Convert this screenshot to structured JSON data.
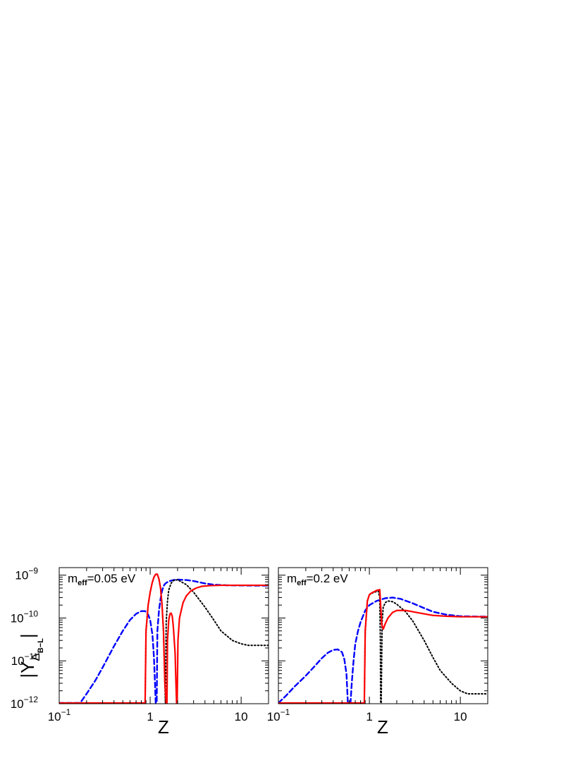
{
  "chart_data": [
    {
      "type": "line",
      "panel": "left",
      "annotation": {
        "main": "m",
        "sub": "eff",
        "rest": "=0.05 eV"
      },
      "xlabel": "Z",
      "ylabel": {
        "main": "|Y",
        "sub": "Δ",
        "subsub": "B−L",
        "end": "|"
      },
      "xscale": "log",
      "yscale": "log",
      "xlim": [
        0.1,
        20
      ],
      "ylim": [
        1e-12,
        1.5e-09
      ],
      "xticks": [
        {
          "value": 0.1,
          "base": "10",
          "exp": "−1"
        },
        {
          "value": 1,
          "label": "1"
        },
        {
          "value": 10,
          "label": "10"
        }
      ],
      "yticks": [
        {
          "value": 1e-12,
          "base": "10",
          "exp": "−12"
        },
        {
          "value": 1e-11,
          "base": "10",
          "exp": "−11"
        },
        {
          "value": 1e-10,
          "base": "10",
          "exp": "−10"
        },
        {
          "value": 1e-09,
          "base": "10",
          "exp": "−9"
        }
      ],
      "series": [
        {
          "style": "dashed",
          "color": "#0000ff",
          "x": [
            0.1,
            0.17,
            0.2,
            0.25,
            0.3,
            0.4,
            0.5,
            0.6,
            0.7,
            0.8,
            0.88,
            0.95,
            1.0,
            1.06,
            1.1,
            1.13,
            1.15,
            1.18,
            1.2,
            1.25,
            1.3,
            1.35,
            1.4,
            1.45,
            1.5,
            1.6,
            1.8,
            2.0,
            2.5,
            3.0,
            3.5,
            4,
            5,
            7,
            10,
            15,
            20
          ],
          "y": [
            1e-12,
            1e-12,
            1.7e-12,
            3.5e-12,
            7e-12,
            2.2e-11,
            5e-11,
            9e-11,
            1.25e-10,
            1.45e-10,
            1.45e-10,
            1.2e-10,
            9e-11,
            4e-11,
            1.2e-11,
            3e-12,
            1e-12,
            1e-12,
            5e-11,
            1.5e-10,
            2.8e-10,
            4.3e-10,
            5.5e-10,
            6.2e-10,
            6.6e-10,
            7.2e-10,
            7.7e-10,
            7.9e-10,
            7.7e-10,
            7.3e-10,
            6.8e-10,
            6.4e-10,
            6e-10,
            5.8e-10,
            5.75e-10,
            5.7e-10,
            5.7e-10
          ]
        },
        {
          "style": "dotted",
          "color": "#000000",
          "x": [
            0.1,
            0.85,
            0.88,
            0.9,
            0.95,
            1.0,
            1.05,
            1.1,
            1.15,
            1.2,
            1.25,
            1.3,
            1.35,
            1.4,
            1.45,
            1.47,
            1.5,
            1.55,
            1.6,
            1.7,
            1.8,
            2.0,
            2.5,
            3.0,
            4.0,
            5.0,
            6.0,
            8.0,
            10,
            12,
            15,
            20
          ],
          "y": [
            1e-12,
            1e-12,
            1e-12,
            5e-11,
            2e-10,
            4e-10,
            6.5e-10,
            9e-10,
            1.05e-09,
            1.05e-09,
            8e-10,
            5e-10,
            2e-10,
            5e-11,
            3e-12,
            1e-12,
            8e-11,
            2.5e-10,
            4.5e-10,
            6.5e-10,
            7.5e-10,
            7.8e-10,
            6e-10,
            4e-10,
            1.8e-10,
            9e-11,
            5e-11,
            3e-11,
            2.5e-11,
            2.3e-11,
            2.3e-11,
            2.3e-11
          ]
        },
        {
          "style": "solid",
          "color": "#ff0000",
          "x": [
            0.1,
            0.88,
            0.9,
            0.95,
            1.0,
            1.05,
            1.1,
            1.15,
            1.2,
            1.25,
            1.3,
            1.35,
            1.4,
            1.45,
            1.5,
            1.53,
            1.55,
            1.6,
            1.65,
            1.7,
            1.75,
            1.8,
            1.88,
            1.92,
            1.95,
            1.98,
            2.02,
            2.1,
            2.3,
            2.5,
            2.8,
            3.2,
            3.7,
            4.5,
            6,
            8,
            10,
            15,
            20
          ],
          "y": [
            1e-12,
            1e-12,
            5e-11,
            2e-10,
            4e-10,
            6.5e-10,
            9e-10,
            1.05e-09,
            1.05e-09,
            8e-10,
            5e-10,
            2e-10,
            5e-11,
            3e-12,
            1e-12,
            1e-12,
            3e-11,
            9e-11,
            1.25e-10,
            1.3e-10,
            1.1e-10,
            6e-11,
            1.5e-11,
            3e-12,
            1e-12,
            1e-12,
            3e-11,
            1e-10,
            2.3e-10,
            3.3e-10,
            4.3e-10,
            5e-10,
            5.5e-10,
            5.7e-10,
            5.8e-10,
            5.8e-10,
            5.8e-10,
            5.8e-10,
            5.8e-10
          ]
        }
      ]
    },
    {
      "type": "line",
      "panel": "right",
      "annotation": {
        "main": "m",
        "sub": "eff",
        "rest": "=0.2 eV"
      },
      "xlabel": "Z",
      "xscale": "log",
      "yscale": "log",
      "xlim": [
        0.1,
        20
      ],
      "ylim": [
        1e-12,
        1.5e-09
      ],
      "xticks": [
        {
          "value": 0.1,
          "base": "10",
          "exp": "−1"
        },
        {
          "value": 1,
          "label": "1"
        },
        {
          "value": 10,
          "label": "10"
        }
      ],
      "series": [
        {
          "style": "dashed",
          "color": "#0000ff",
          "x": [
            0.1,
            0.12,
            0.15,
            0.2,
            0.25,
            0.3,
            0.35,
            0.4,
            0.45,
            0.5,
            0.53,
            0.56,
            0.58,
            0.6,
            0.62,
            0.64,
            0.67,
            0.7,
            0.75,
            0.8,
            0.9,
            1.0,
            1.2,
            1.5,
            1.8,
            2.2,
            3.0,
            4.0,
            5.0,
            7.0,
            10,
            15,
            20
          ],
          "y": [
            1e-12,
            1.5e-12,
            2.5e-12,
            4.5e-12,
            7.5e-12,
            1.15e-11,
            1.55e-11,
            1.8e-11,
            1.85e-11,
            1.6e-11,
            1.1e-11,
            5e-12,
            1e-12,
            1e-12,
            1e-12,
            3e-12,
            1e-11,
            2.5e-11,
            5e-11,
            8e-11,
            1.5e-10,
            2e-10,
            2.5e-10,
            2.9e-10,
            3e-10,
            2.8e-10,
            2.2e-10,
            1.7e-10,
            1.4e-10,
            1.2e-10,
            1.1e-10,
            1.08e-10,
            1.08e-10
          ]
        },
        {
          "style": "dotted",
          "color": "#000000",
          "x": [
            0.1,
            0.88,
            0.9,
            0.95,
            1.0,
            1.05,
            1.1,
            1.15,
            1.2,
            1.25,
            1.3,
            1.32,
            1.33,
            1.35,
            1.38,
            1.42,
            1.5,
            1.6,
            1.8,
            2.0,
            2.5,
            3.0,
            4.0,
            5.0,
            6.0,
            8.0,
            10,
            12,
            15,
            20
          ],
          "y": [
            1e-12,
            1e-12,
            5e-11,
            2.5e-10,
            3.5e-10,
            3.7e-10,
            3.9e-10,
            4e-10,
            4.2e-10,
            4.3e-10,
            3e-10,
            3e-11,
            1e-12,
            1e-12,
            8e-11,
            1.8e-10,
            2.3e-10,
            2.5e-10,
            2.4e-10,
            2.1e-10,
            1.4e-10,
            8.5e-11,
            3e-11,
            1.2e-11,
            6e-12,
            3e-12,
            2e-12,
            1.7e-12,
            1.7e-12,
            1.7e-12
          ]
        },
        {
          "style": "solid",
          "color": "#ff0000",
          "x": [
            0.1,
            0.88,
            0.9,
            0.95,
            1.0,
            1.05,
            1.1,
            1.15,
            1.2,
            1.25,
            1.3,
            1.33,
            1.37,
            1.42,
            1.5,
            1.6,
            1.8,
            2.0,
            2.5,
            3.0,
            4.0,
            5.0,
            7.0,
            10,
            15,
            20
          ],
          "y": [
            1e-12,
            1e-12,
            5e-11,
            2.5e-10,
            3.5e-10,
            3.8e-10,
            4e-10,
            4.2e-10,
            4.4e-10,
            4.5e-10,
            4.6e-10,
            2e-10,
            7e-11,
            5.5e-11,
            7.5e-11,
            1e-10,
            1.35e-10,
            1.5e-10,
            1.5e-10,
            1.4e-10,
            1.25e-10,
            1.15e-10,
            1.1e-10,
            1.07e-10,
            1.07e-10,
            1.07e-10
          ]
        }
      ]
    }
  ]
}
